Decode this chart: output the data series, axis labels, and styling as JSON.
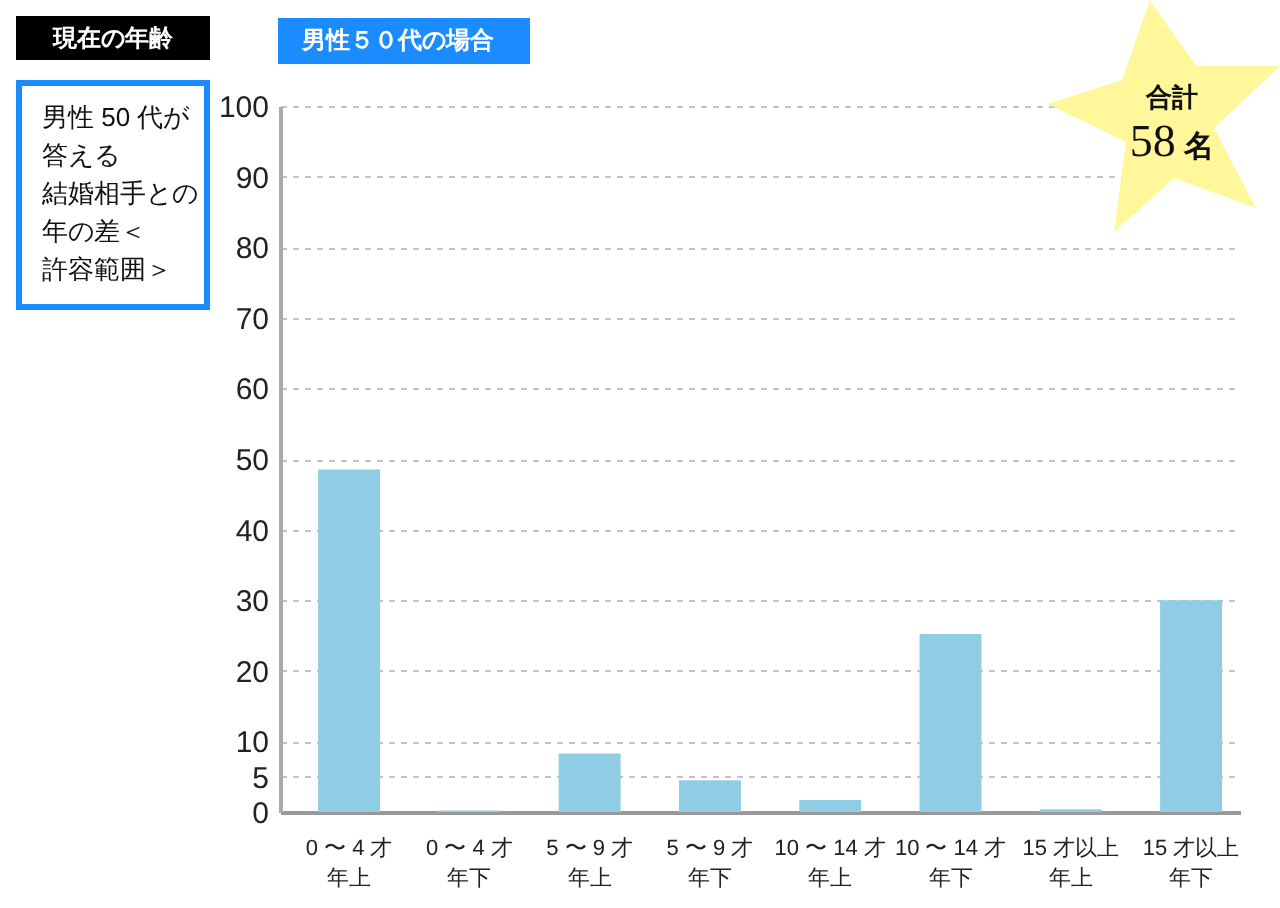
{
  "chart_data": {
    "type": "bar",
    "title": "男性 50 代が答える結婚相手との年の差＜許容範囲＞",
    "subtitle": "男性５０代の場合",
    "annotations": [
      "現在の年齢",
      "合計\n58 名"
    ],
    "categories": [
      "0 〜 4 才年上",
      "0 〜 4 才年下",
      "5 〜 9 才年上",
      "5 〜 9 才年下",
      "10 〜 14 才年上",
      "10 〜 14 才年下",
      "15 才以上年上",
      "15 才以上年下"
    ],
    "values": [
      48.5,
      0.2,
      8.3,
      4.5,
      1.7,
      25.2,
      0.4,
      30
    ],
    "color": "#8ecde3",
    "ylim": [
      0,
      100
    ],
    "yticks": [
      0,
      5,
      10,
      20,
      30,
      40,
      50,
      60,
      70,
      80,
      90,
      100
    ],
    "grid": "y"
  }
}
